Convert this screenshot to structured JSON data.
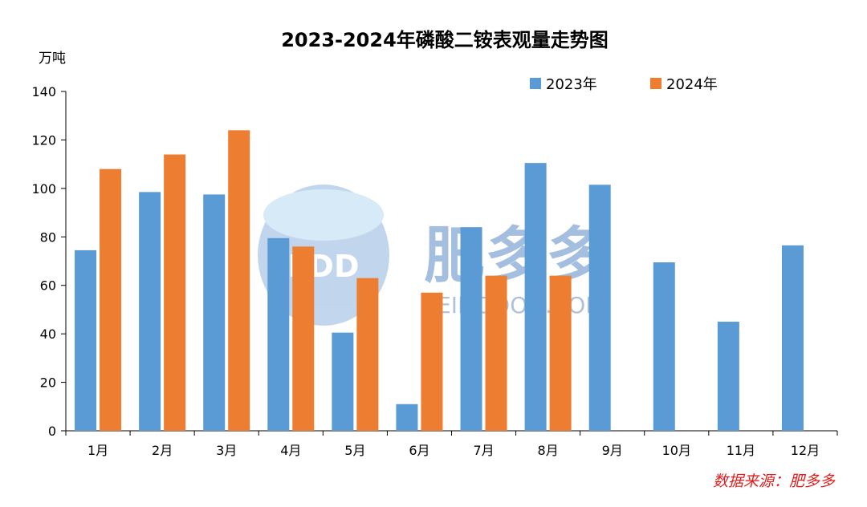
{
  "chart_data": {
    "type": "bar",
    "title": "2023-2024年磷酸二铵表观量走势图",
    "ylabel": "万吨",
    "xlabel": "",
    "ylim": [
      0,
      140
    ],
    "yticks": [
      0,
      20,
      40,
      60,
      80,
      100,
      120,
      140
    ],
    "categories": [
      "1月",
      "2月",
      "3月",
      "4月",
      "5月",
      "6月",
      "7月",
      "8月",
      "9月",
      "10月",
      "11月",
      "12月"
    ],
    "series": [
      {
        "name": "2023年",
        "color": "#5b9bd5",
        "values": [
          74.5,
          98.5,
          97.5,
          79.5,
          40.5,
          11,
          84,
          110.5,
          101.5,
          69.5,
          45,
          76.5
        ]
      },
      {
        "name": "2024年",
        "color": "#ed7d31",
        "values": [
          108,
          114,
          124,
          76,
          63,
          57,
          64,
          64,
          null,
          null,
          null,
          null
        ]
      }
    ],
    "legend_position": "top-right",
    "grid": false
  },
  "source_text": "数据来源：肥多多",
  "watermark": {
    "logo_text": "FDD",
    "main_text": "肥多多",
    "sub_text": "FEIDODOD.COM"
  }
}
